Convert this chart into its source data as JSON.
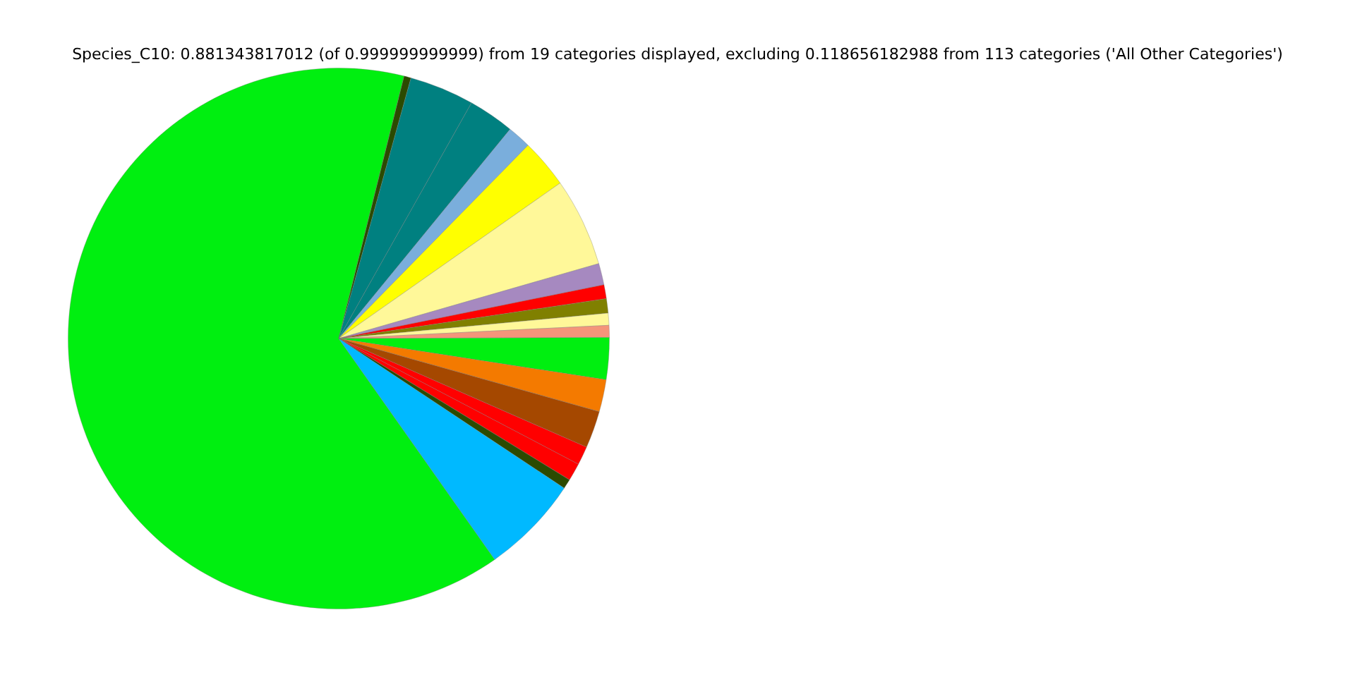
{
  "chart_data": {
    "type": "pie",
    "title": "Species_C10: 0.881343817012 (of 0.999999999999) from 19 categories displayed, excluding 0.118656182988 from 113 categories ('All Other Categories')",
    "categories": [
      null,
      null,
      null,
      null,
      null,
      null,
      null,
      null,
      null,
      null,
      null,
      null,
      null,
      null,
      null,
      null,
      null,
      null,
      null
    ],
    "values": [
      63.66,
      0.42,
      3.86,
      2.75,
      1.42,
      2.92,
      5.28,
      1.28,
      0.83,
      0.86,
      0.72,
      0.72,
      2.5,
      1.92,
      2.22,
      1.11,
      1.06,
      0.58,
      5.89
    ],
    "colors": [
      "#00ef10",
      "#2b4a00",
      "#008080",
      "#008080",
      "#7aaedc",
      "#ffff00",
      "#fff899",
      "#a689c0",
      "#ff0000",
      "#808000",
      "#fff899",
      "#f4957a",
      "#00ef10",
      "#f47a00",
      "#a54800",
      "#ff0000",
      "#ff0000",
      "#2b4a00",
      "#00b9ff"
    ]
  }
}
